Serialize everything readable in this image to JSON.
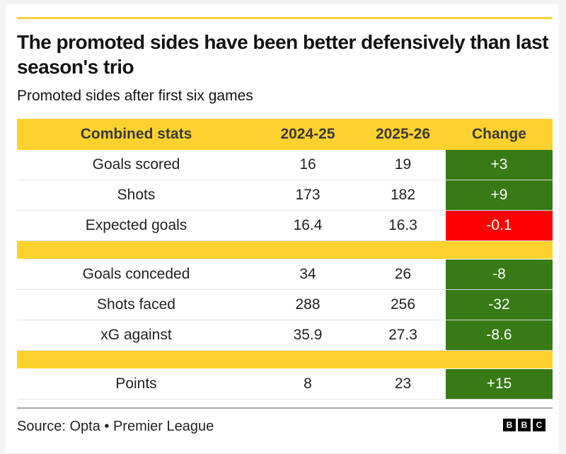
{
  "title": "The promoted sides have been better defensively than last season's trio",
  "subtitle": "Promoted sides after first six games",
  "source": "Source: Opta • Premier League",
  "logo": [
    "B",
    "B",
    "C"
  ],
  "colors": {
    "header": "#fdd22f",
    "positive": "#387a16",
    "negative": "#ff0000",
    "accent_line": "#f5d33a"
  },
  "chart_data": {
    "type": "table",
    "title": "The promoted sides have been better defensively than last season's trio",
    "subtitle": "Promoted sides after first six games",
    "columns": [
      "Combined stats",
      "2024-25",
      "2025-26",
      "Change"
    ],
    "groups": [
      [
        {
          "stat": "Goals scored",
          "y2024": "16",
          "y2025": "19",
          "change": "+3",
          "status": "good"
        },
        {
          "stat": "Shots",
          "y2024": "173",
          "y2025": "182",
          "change": "+9",
          "status": "good"
        },
        {
          "stat": "Expected goals",
          "y2024": "16.4",
          "y2025": "16.3",
          "change": "-0.1",
          "status": "bad"
        }
      ],
      [
        {
          "stat": "Goals conceded",
          "y2024": "34",
          "y2025": "26",
          "change": "-8",
          "status": "good"
        },
        {
          "stat": "Shots faced",
          "y2024": "288",
          "y2025": "256",
          "change": "-32",
          "status": "good"
        },
        {
          "stat": "xG against",
          "y2024": "35.9",
          "y2025": "27.3",
          "change": "-8.6",
          "status": "good"
        }
      ],
      [
        {
          "stat": "Points",
          "y2024": "8",
          "y2025": "23",
          "change": "+15",
          "status": "good"
        }
      ]
    ],
    "source": "Source: Opta • Premier League"
  }
}
